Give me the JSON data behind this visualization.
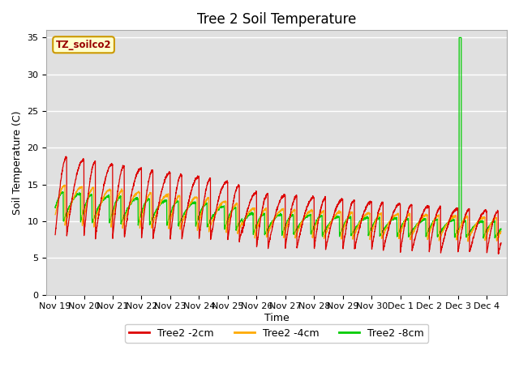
{
  "title": "Tree 2 Soil Temperature",
  "ylabel": "Soil Temperature (C)",
  "xlabel": "Time",
  "ylim": [
    0,
    36
  ],
  "annotation_text": "TZ_soilco2",
  "legend": [
    "Tree2 -2cm",
    "Tree2 -4cm",
    "Tree2 -8cm"
  ],
  "line_colors": [
    "#dd0000",
    "#ffaa00",
    "#00cc00"
  ],
  "bg_color": "#e0e0e0",
  "fig_bg": "#ffffff",
  "tick_labels": [
    "Nov 19",
    "Nov 20",
    "Nov 21",
    "Nov 22",
    "Nov 23",
    "Nov 24",
    "Nov 25",
    "Nov 26",
    "Nov 27",
    "Nov 28",
    "Nov 29",
    "Nov 30",
    "Dec 1",
    "Dec 2",
    "Dec 3",
    "Dec 4"
  ],
  "tick_positions": [
    0,
    1,
    2,
    3,
    4,
    5,
    6,
    7,
    8,
    9,
    10,
    11,
    12,
    13,
    14,
    15
  ]
}
